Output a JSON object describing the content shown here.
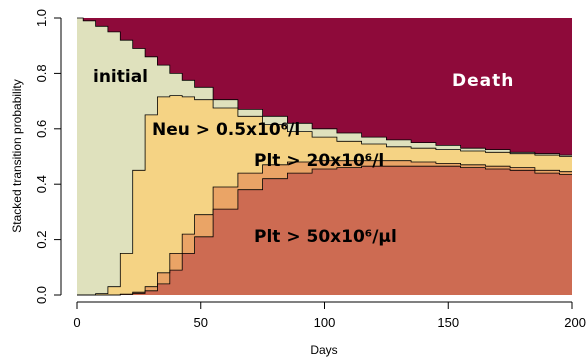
{
  "chart_data": {
    "type": "area",
    "stacked": true,
    "xlabel": "Days",
    "ylabel": "Stacked transition probability",
    "xlim": [
      0,
      200
    ],
    "ylim": [
      0,
      1
    ],
    "xticks": [
      "0",
      "50",
      "100",
      "150",
      "200"
    ],
    "yticks": [
      "0.0",
      "0.2",
      "0.4",
      "0.6",
      "0.8",
      "1.0"
    ],
    "grid": false,
    "x": [
      0,
      5,
      10,
      15,
      20,
      25,
      30,
      35,
      40,
      45,
      50,
      60,
      70,
      80,
      90,
      100,
      110,
      120,
      130,
      140,
      150,
      160,
      170,
      180,
      190,
      200
    ],
    "boundaries": {
      "plt50_top": [
        0,
        0,
        0,
        0,
        0.002,
        0.006,
        0.015,
        0.04,
        0.09,
        0.15,
        0.21,
        0.31,
        0.38,
        0.42,
        0.44,
        0.455,
        0.46,
        0.465,
        0.465,
        0.465,
        0.465,
        0.46,
        0.455,
        0.45,
        0.44,
        0.435
      ],
      "plt20_top": [
        0,
        0,
        0,
        0,
        0.003,
        0.01,
        0.03,
        0.08,
        0.15,
        0.22,
        0.29,
        0.39,
        0.44,
        0.47,
        0.48,
        0.485,
        0.485,
        0.485,
        0.485,
        0.48,
        0.475,
        0.47,
        0.465,
        0.46,
        0.45,
        0.445
      ],
      "neu_top": [
        0,
        0,
        0.005,
        0.03,
        0.15,
        0.45,
        0.65,
        0.715,
        0.72,
        0.715,
        0.705,
        0.675,
        0.645,
        0.615,
        0.59,
        0.57,
        0.555,
        0.545,
        0.535,
        0.53,
        0.525,
        0.52,
        0.515,
        0.51,
        0.505,
        0.5
      ],
      "initial_top": [
        1,
        0.99,
        0.97,
        0.95,
        0.92,
        0.89,
        0.86,
        0.83,
        0.8,
        0.775,
        0.75,
        0.705,
        0.67,
        0.645,
        0.62,
        0.6,
        0.585,
        0.57,
        0.56,
        0.55,
        0.54,
        0.53,
        0.525,
        0.515,
        0.51,
        0.505
      ]
    },
    "states": [
      {
        "name": "Plt > 50x10⁶/µl",
        "color": "#CD6B52",
        "lower": null,
        "upper": "plt50_top"
      },
      {
        "name": "Plt > 20x10⁶/l",
        "color": "#EAA466",
        "lower": "plt50_top",
        "upper": "plt20_top"
      },
      {
        "name": "Neu > 0.5x10⁶/l",
        "color": "#F5D384",
        "lower": "plt20_top",
        "upper": "neu_top"
      },
      {
        "name": "initial",
        "color": "#DFE1BD",
        "lower": "neu_top",
        "upper": "initial_top"
      },
      {
        "name": "Death",
        "color": "#8E0A3A",
        "lower": "initial_top",
        "upper": "one"
      }
    ],
    "labels": {
      "initial": "initial",
      "neu": "Neu > 0.5x10⁶/l",
      "plt20": "Plt > 20x10⁶/l",
      "plt50": "Plt > 50x10⁶/µl",
      "death": "Death"
    },
    "label_colors": {
      "initial": "#000000",
      "neu": "#000000",
      "plt20": "#000000",
      "plt50": "#000000",
      "death": "#ffffff"
    }
  }
}
